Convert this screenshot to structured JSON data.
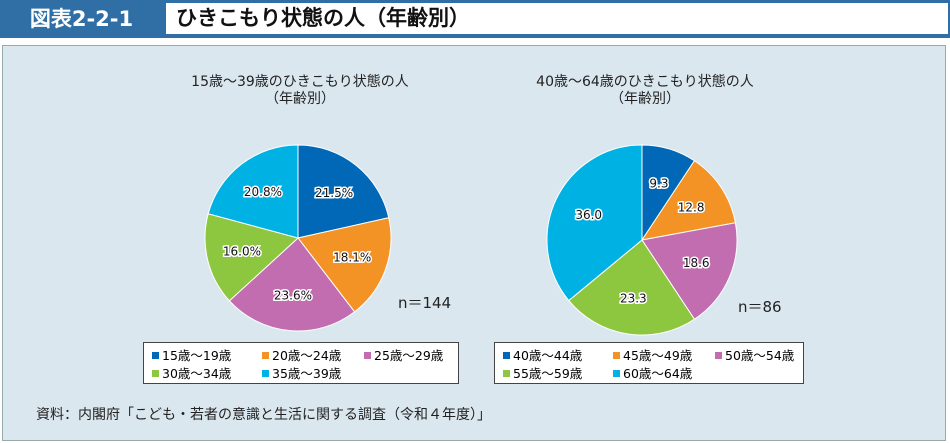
{
  "header": {
    "id": "図表2-2-1",
    "title": "ひきこもり状態の人（年齢別）"
  },
  "colors": [
    "#0068b7",
    "#f39325",
    "#c36db1",
    "#8dc63f",
    "#00b1e4"
  ],
  "chart_data": [
    {
      "type": "pie",
      "title": "15歳～39歳のひきこもり状態の人",
      "subtitle": "（年齢別）",
      "n": "n＝144",
      "categories": [
        "15歳～19歳",
        "20歳～24歳",
        "25歳～29歳",
        "30歳～34歳",
        "35歳～39歳"
      ],
      "values": [
        21.5,
        18.1,
        23.6,
        16.0,
        20.8
      ],
      "labels": [
        "21.5%",
        "18.1%",
        "23.6%",
        "16.0%",
        "20.8%"
      ],
      "legend": "bottom"
    },
    {
      "type": "pie",
      "title": "40歳～64歳のひきこもり状態の人",
      "subtitle": "（年齢別）",
      "n": "n＝86",
      "categories": [
        "40歳～44歳",
        "45歳～49歳",
        "50歳～54歳",
        "55歳～59歳",
        "60歳～64歳"
      ],
      "values": [
        9.3,
        12.8,
        18.6,
        23.3,
        36.0
      ],
      "labels": [
        "9.3",
        "12.8",
        "18.6",
        "23.3",
        "36.0"
      ],
      "legend": "bottom"
    }
  ],
  "source": "資料：内閣府「こども・若者の意識と生活に関する調査（令和４年度）」"
}
